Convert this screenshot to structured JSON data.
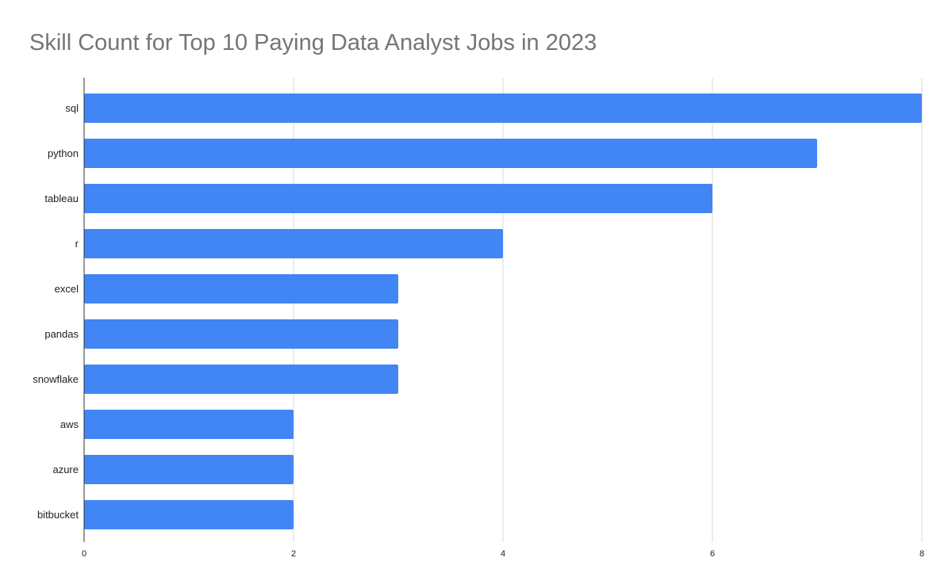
{
  "chart_data": {
    "type": "bar",
    "orientation": "horizontal",
    "title": "Skill Count for Top 10 Paying Data Analyst Jobs in 2023",
    "xlabel": "",
    "ylabel": "",
    "categories": [
      "sql",
      "python",
      "tableau",
      "r",
      "excel",
      "pandas",
      "snowflake",
      "aws",
      "azure",
      "bitbucket"
    ],
    "values": [
      8,
      7,
      6,
      4,
      3,
      3,
      3,
      2,
      2,
      2
    ],
    "xlim": [
      0,
      8
    ],
    "xticks": [
      "0",
      "2",
      "4",
      "6",
      "8"
    ],
    "grid": true,
    "legend": "none",
    "bar_color": "#4285F4"
  }
}
